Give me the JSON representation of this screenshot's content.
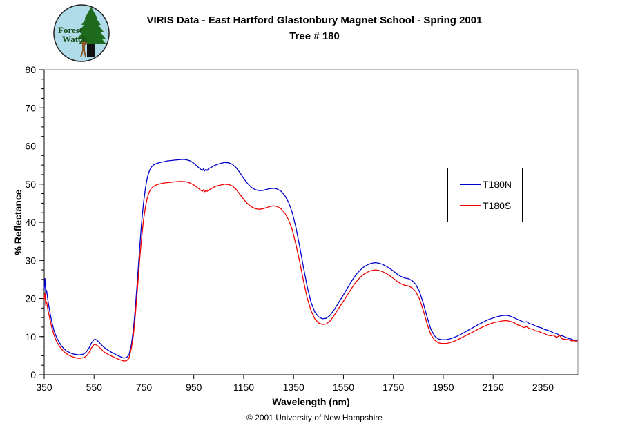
{
  "header": {
    "title_line1": "VIRIS Data - East Hartford Glastonbury Magnet School - Spring 2001",
    "title_line2": "Tree # 180",
    "logo": {
      "line1": "Forest",
      "line2": "Watch"
    }
  },
  "footer": {
    "copyright": "© 2001 University of New Hampshire"
  },
  "chart_data": {
    "type": "line",
    "title": "VIRIS Data - East Hartford Glastonbury Magnet School - Spring 2001 Tree # 180",
    "xlabel": "Wavelength (nm)",
    "ylabel": "% Reflectance",
    "xlim": [
      350,
      2490
    ],
    "ylim": [
      0,
      80
    ],
    "x_ticks": [
      350,
      550,
      750,
      950,
      1150,
      1350,
      1550,
      1750,
      1950,
      2150,
      2350
    ],
    "y_ticks": [
      0,
      10,
      20,
      30,
      40,
      50,
      60,
      70,
      80
    ],
    "y_minor_step": 2.5,
    "grid": false,
    "legend_position": "right-middle",
    "plot_border_color": "#848284",
    "x": [
      350,
      353,
      356,
      360,
      365,
      370,
      380,
      390,
      400,
      410,
      420,
      430,
      440,
      450,
      460,
      470,
      480,
      490,
      500,
      510,
      520,
      530,
      540,
      550,
      555,
      560,
      570,
      580,
      590,
      600,
      610,
      620,
      630,
      640,
      650,
      660,
      670,
      680,
      690,
      700,
      708,
      716,
      724,
      732,
      740,
      748,
      756,
      764,
      772,
      780,
      790,
      800,
      815,
      830,
      845,
      860,
      875,
      890,
      905,
      920,
      935,
      950,
      960,
      970,
      978,
      984,
      989,
      994,
      999,
      1004,
      1009,
      1014,
      1020,
      1030,
      1045,
      1060,
      1075,
      1090,
      1105,
      1120,
      1135,
      1150,
      1165,
      1180,
      1195,
      1210,
      1225,
      1240,
      1255,
      1270,
      1285,
      1300,
      1315,
      1330,
      1345,
      1360,
      1375,
      1390,
      1405,
      1420,
      1435,
      1450,
      1465,
      1480,
      1495,
      1510,
      1525,
      1540,
      1555,
      1570,
      1585,
      1600,
      1615,
      1630,
      1645,
      1660,
      1675,
      1690,
      1705,
      1720,
      1735,
      1750,
      1765,
      1780,
      1795,
      1810,
      1825,
      1840,
      1855,
      1870,
      1885,
      1900,
      1915,
      1930,
      1945,
      1960,
      1975,
      1990,
      2005,
      2020,
      2035,
      2050,
      2065,
      2080,
      2095,
      2110,
      2125,
      2140,
      2155,
      2170,
      2185,
      2200,
      2212,
      2224,
      2236,
      2248,
      2260,
      2272,
      2284,
      2296,
      2308,
      2320,
      2332,
      2344,
      2356,
      2368,
      2380,
      2392,
      2404,
      2416,
      2428,
      2440,
      2452,
      2464,
      2476,
      2488
    ],
    "series": [
      {
        "name": "T180N",
        "color": "#0000CC",
        "values": [
          22.5,
          25.3,
          21.5,
          22.0,
          19.5,
          17.5,
          14.0,
          11.5,
          9.7,
          8.5,
          7.5,
          6.8,
          6.2,
          5.9,
          5.6,
          5.4,
          5.3,
          5.2,
          5.3,
          5.5,
          6.1,
          7.0,
          8.4,
          9.2,
          9.3,
          9.1,
          8.5,
          7.8,
          7.2,
          6.7,
          6.3,
          5.9,
          5.6,
          5.2,
          4.9,
          4.6,
          4.4,
          4.5,
          5.2,
          8.0,
          12.0,
          18.0,
          25.0,
          32.5,
          39.5,
          45.0,
          49.0,
          51.8,
          53.5,
          54.5,
          55.1,
          55.4,
          55.7,
          55.9,
          56.1,
          56.2,
          56.3,
          56.4,
          56.5,
          56.4,
          56.1,
          55.5,
          54.9,
          54.3,
          53.9,
          53.6,
          54.0,
          53.5,
          53.9,
          53.6,
          54.0,
          54.2,
          54.4,
          54.8,
          55.2,
          55.5,
          55.7,
          55.6,
          55.2,
          54.3,
          53.0,
          51.5,
          50.2,
          49.2,
          48.6,
          48.3,
          48.3,
          48.6,
          48.8,
          48.9,
          48.7,
          48.1,
          47.0,
          45.2,
          42.5,
          38.5,
          33.5,
          28.0,
          23.0,
          19.0,
          16.5,
          15.2,
          14.7,
          14.8,
          15.5,
          16.8,
          18.3,
          19.9,
          21.5,
          23.2,
          24.8,
          26.2,
          27.3,
          28.2,
          28.8,
          29.2,
          29.4,
          29.3,
          29.0,
          28.5,
          27.9,
          27.2,
          26.4,
          25.8,
          25.4,
          25.2,
          24.7,
          23.7,
          21.8,
          18.8,
          15.2,
          12.0,
          10.2,
          9.4,
          9.2,
          9.2,
          9.4,
          9.7,
          10.1,
          10.6,
          11.1,
          11.7,
          12.2,
          12.8,
          13.3,
          13.8,
          14.3,
          14.7,
          15.0,
          15.3,
          15.5,
          15.6,
          15.5,
          15.2,
          14.9,
          14.5,
          14.2,
          13.8,
          13.9,
          13.4,
          13.2,
          12.8,
          12.5,
          12.3,
          11.9,
          11.7,
          11.4,
          11.0,
          10.8,
          10.4,
          10.2,
          9.9,
          9.5,
          9.4,
          9.0,
          8.9
        ]
      },
      {
        "name": "T180S",
        "color": "#EE0000",
        "values": [
          19.8,
          21.5,
          18.5,
          19.0,
          17.0,
          15.5,
          12.5,
          10.3,
          8.7,
          7.6,
          6.7,
          6.0,
          5.5,
          5.1,
          4.8,
          4.6,
          4.4,
          4.3,
          4.4,
          4.5,
          5.0,
          5.8,
          7.1,
          7.9,
          8.0,
          7.8,
          7.3,
          6.6,
          6.0,
          5.6,
          5.2,
          4.9,
          4.6,
          4.3,
          4.0,
          3.8,
          3.6,
          3.7,
          4.3,
          7.0,
          10.5,
          16.0,
          22.5,
          29.5,
          35.5,
          40.5,
          44.0,
          46.5,
          48.0,
          48.9,
          49.5,
          49.8,
          50.1,
          50.3,
          50.4,
          50.5,
          50.6,
          50.7,
          50.7,
          50.6,
          50.3,
          49.8,
          49.3,
          48.8,
          48.4,
          48.1,
          48.5,
          48.0,
          48.3,
          48.1,
          48.4,
          48.6,
          48.8,
          49.2,
          49.6,
          49.8,
          50.0,
          49.9,
          49.5,
          48.6,
          47.3,
          46.0,
          44.9,
          44.1,
          43.6,
          43.4,
          43.5,
          43.8,
          44.1,
          44.3,
          44.1,
          43.5,
          42.4,
          40.6,
          38.0,
          34.0,
          29.5,
          24.5,
          20.0,
          16.8,
          14.7,
          13.6,
          13.2,
          13.3,
          14.0,
          15.3,
          16.8,
          18.3,
          19.8,
          21.4,
          22.9,
          24.3,
          25.4,
          26.3,
          26.9,
          27.3,
          27.5,
          27.4,
          27.1,
          26.6,
          26.0,
          25.3,
          24.5,
          23.9,
          23.5,
          23.3,
          22.8,
          21.8,
          19.9,
          16.9,
          13.4,
          10.6,
          9.1,
          8.4,
          8.2,
          8.2,
          8.4,
          8.7,
          9.1,
          9.6,
          10.1,
          10.6,
          11.1,
          11.6,
          12.1,
          12.6,
          13.0,
          13.4,
          13.7,
          13.9,
          14.1,
          14.2,
          14.1,
          13.9,
          13.6,
          13.1,
          12.9,
          12.4,
          12.6,
          12.1,
          12.0,
          11.5,
          11.4,
          11.0,
          10.8,
          10.4,
          10.2,
          10.4,
          9.8,
          10.3,
          9.4,
          9.3,
          9.2,
          8.9,
          8.9,
          8.8
        ]
      }
    ]
  }
}
